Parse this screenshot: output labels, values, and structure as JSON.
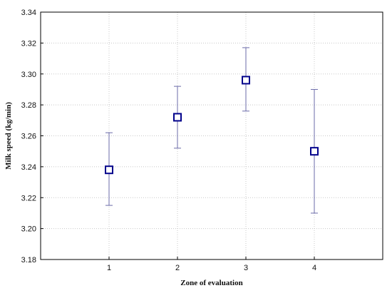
{
  "chart_data": {
    "type": "scatter",
    "title": "",
    "xlabel": "Zone of evaluation",
    "ylabel": "Milk speed (kg/min)",
    "x_ticks": [
      "1",
      "2",
      "3",
      "4"
    ],
    "x": [
      1,
      2,
      3,
      4
    ],
    "xlim": [
      0,
      5
    ],
    "ylim": [
      3.18,
      3.34
    ],
    "y_ticks": [
      "3.18",
      "3.20",
      "3.22",
      "3.24",
      "3.26",
      "3.28",
      "3.30",
      "3.32",
      "3.34"
    ],
    "grid": true,
    "legend": "none",
    "marker": "open-square",
    "color": "#00008b",
    "error_bar_color": "#6b6ba8",
    "series": [
      {
        "values": [
          3.238,
          3.272,
          3.296,
          3.25
        ],
        "error_low": [
          3.215,
          3.252,
          3.276,
          3.21
        ],
        "error_high": [
          3.262,
          3.292,
          3.317,
          3.29
        ]
      }
    ]
  }
}
